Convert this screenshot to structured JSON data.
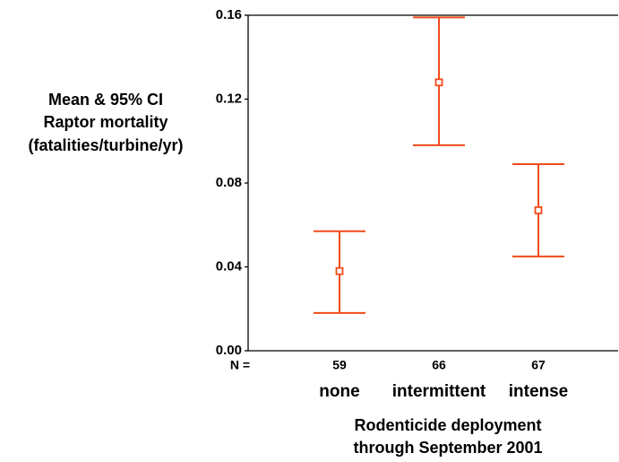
{
  "chart_data": {
    "type": "errorbar",
    "ylabel": [
      "Mean & 95% CI",
      "Raptor mortality",
      "(fatalities/turbine/yr)"
    ],
    "xlabel": [
      "Rodenticide deployment",
      "through September 2001"
    ],
    "categories": [
      "none",
      "intermittent",
      "intense"
    ],
    "n_label": "N =",
    "n": [
      59,
      66,
      67
    ],
    "values": [
      0.038,
      0.128,
      0.067
    ],
    "lower": [
      0.018,
      0.098,
      0.045
    ],
    "upper": [
      0.057,
      0.159,
      0.089
    ],
    "color": "#f04a1a",
    "ylim": [
      0,
      0.16
    ],
    "yticks": [
      {
        "value": 0,
        "label": "0.00"
      },
      0.04,
      0.08,
      0.12,
      0.16
    ]
  }
}
